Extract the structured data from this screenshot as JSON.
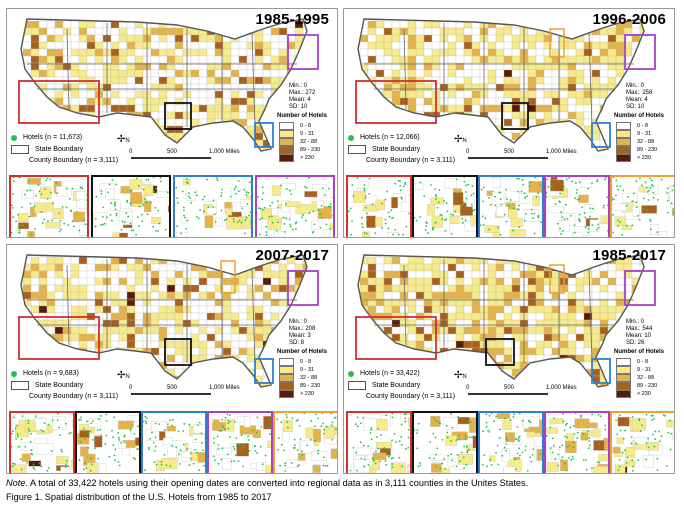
{
  "panels": [
    {
      "period": "1985-1995",
      "min": "Min.: 0",
      "max": "Max.: 272",
      "mean": "Mean: 4",
      "sd": "SD: 10",
      "hotels": "Hotels (n = 11,673)",
      "level": 0.45
    },
    {
      "period": "1996-2006",
      "min": "Min.: 0",
      "max": "Max.: 258",
      "mean": "Mean: 4",
      "sd": "SD: 10",
      "hotels": "Hotels (n = 12,066)",
      "level": 0.5
    },
    {
      "period": "2007-2017",
      "min": "Min.: 0",
      "max": "Max.: 208",
      "mean": "Mean: 3",
      "sd": "SD: 8",
      "hotels": "Hotels (n = 9,683)",
      "level": 0.4
    },
    {
      "period": "1985-2017",
      "min": "Min.: 0",
      "max": "Max.: 544",
      "mean": "Mean: 10",
      "sd": "SD: 26",
      "hotels": "Hotels (n = 33,422)",
      "level": 0.85
    }
  ],
  "legend": {
    "title": "Number of Hotels",
    "classes": [
      {
        "label": "0 - 8",
        "color": "#ffffff"
      },
      {
        "label": "9 - 31",
        "color": "#f6ea8a"
      },
      {
        "label": "32 - 88",
        "color": "#e3b248"
      },
      {
        "label": "89 - 230",
        "color": "#a7611f"
      },
      {
        "label": "> 230",
        "color": "#5a1a05"
      }
    ],
    "state_boundary": "State Boundary",
    "county_boundary": "County Boundary (n = 3,111)",
    "north": "N"
  },
  "scale": {
    "zero": "0",
    "mid": "500",
    "end": "1,000 Miles"
  },
  "colors": {
    "hotel_dot": "#22c24a",
    "west": "#d32f2f",
    "south": "#111111",
    "florida": "#2f7fd1",
    "northeast": "#a63fc9",
    "midwest": "#f0a030"
  },
  "note": {
    "label": "Note",
    "text": ". A total of 33,422 hotels using their opening dates are converted into regional data as in 3,111 counties in the Unites States."
  },
  "caption": "Figure 1. Spatial distribution of the U.S. Hotels from 1985 to 2017"
}
